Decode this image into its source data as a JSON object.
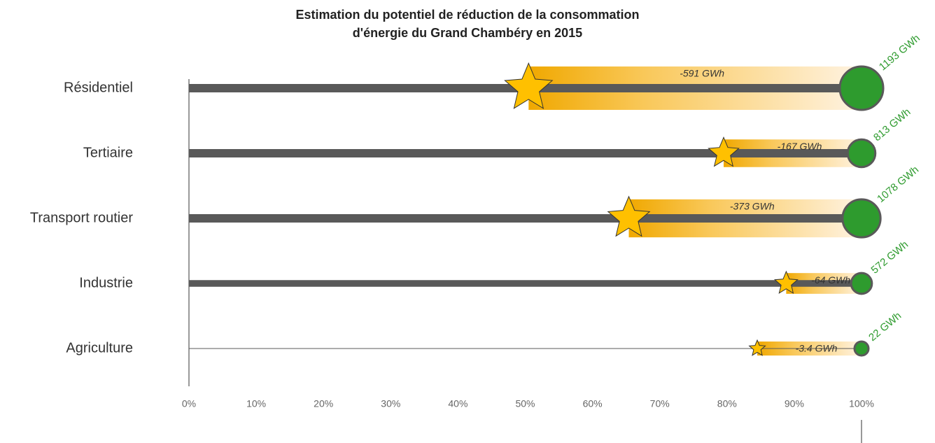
{
  "chart_data": {
    "type": "reduction",
    "title": "Estimation du potentiel de réduction de la consommation",
    "subtitle": "d'énergie du Grand Chambéry en 2015",
    "categories": [
      "Résidentiel",
      "Tertiaire",
      "Transport routier",
      "Industrie",
      "Agriculture"
    ],
    "values": [
      50.5,
      79.5,
      65.4,
      88.8,
      84.5
    ],
    "consumption": [
      1193,
      813,
      1078,
      572,
      22
    ],
    "consumption_labels": [
      "1193 GWh",
      "813 GWh",
      "1078 GWh",
      "572 GWh",
      "22 GWh"
    ],
    "reduction": [
      -591,
      -167,
      -373,
      -64,
      -3.4
    ],
    "reduction_labels": [
      "-591 GWh",
      "-167 GWh",
      "-373 GWh",
      "-64 GWh",
      "-3.4 GWh"
    ],
    "xlim": [
      0,
      100
    ],
    "xticks": [
      {
        "value": 0,
        "label": "0%"
      },
      {
        "value": 10,
        "label": "10%"
      },
      {
        "value": 20,
        "label": "20%"
      },
      {
        "value": 30,
        "label": "30%"
      },
      {
        "value": 40,
        "label": "40%"
      },
      {
        "value": 50,
        "label": "50%"
      },
      {
        "value": 60,
        "label": "60%"
      },
      {
        "value": 70,
        "label": "70%"
      },
      {
        "value": 80,
        "label": "80%"
      },
      {
        "value": 90,
        "label": "90%"
      },
      {
        "value": 100,
        "label": "100%"
      }
    ],
    "line_color": "#595959",
    "circle_color": "#2e9b2e",
    "star_color": "#ffc000",
    "label_color": "#2e9b2e"
  }
}
